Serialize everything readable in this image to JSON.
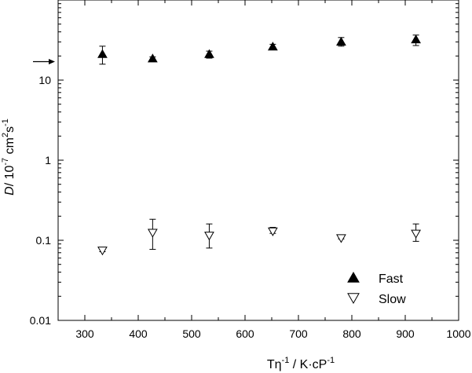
{
  "chart_data": {
    "type": "scatter",
    "title": "",
    "xlabel": {
      "base": "Tη",
      "sup1": "-1",
      "mid": " / K·cP",
      "sup2": "-1"
    },
    "ylabel": {
      "italic": "D",
      "base": "/ 10",
      "sup1": "-7",
      "mid": " cm",
      "sup2": "2",
      "mid2": "s",
      "sup3": "-1"
    },
    "xlim": [
      250,
      1000
    ],
    "ylim": [
      0.01,
      100
    ],
    "y_scale": "log",
    "x_ticks": [
      {
        "value": 300,
        "label": "300"
      },
      {
        "value": 400,
        "label": "400"
      },
      {
        "value": 500,
        "label": "500"
      },
      {
        "value": 600,
        "label": "600"
      },
      {
        "value": 700,
        "label": "700"
      },
      {
        "value": 800,
        "label": "800"
      },
      {
        "value": 900,
        "label": "900"
      },
      {
        "value": 1000,
        "label": "1000"
      }
    ],
    "y_ticks": [
      {
        "value": 0.01,
        "label": "0.01"
      },
      {
        "value": 0.1,
        "label": "0.1"
      },
      {
        "value": 1,
        "label": "1"
      },
      {
        "value": 10,
        "label": "10"
      }
    ],
    "arrow_at_y": 17,
    "legend_position": "bottom-right",
    "series": [
      {
        "name": "Fast",
        "marker": "filled-triangle-up",
        "color": "#000000",
        "x": [
          333,
          427,
          533,
          652,
          780,
          920
        ],
        "y": [
          21,
          18.5,
          21,
          26,
          30,
          32
        ],
        "err_low": [
          15.8,
          17.2,
          18.8,
          24.5,
          26.5,
          27.0
        ],
        "err_high": [
          26.5,
          19.5,
          23.0,
          28.0,
          34.0,
          36.5
        ]
      },
      {
        "name": "Slow",
        "marker": "open-triangle-down",
        "color": "#000000",
        "x": [
          333,
          427,
          533,
          652,
          780,
          920
        ],
        "y": [
          0.075,
          0.125,
          0.115,
          0.13,
          0.107,
          0.122
        ],
        "err_low": [
          0.072,
          0.077,
          0.08,
          0.122,
          0.104,
          0.097
        ],
        "err_high": [
          0.078,
          0.183,
          0.16,
          0.145,
          0.11,
          0.16
        ]
      }
    ]
  }
}
